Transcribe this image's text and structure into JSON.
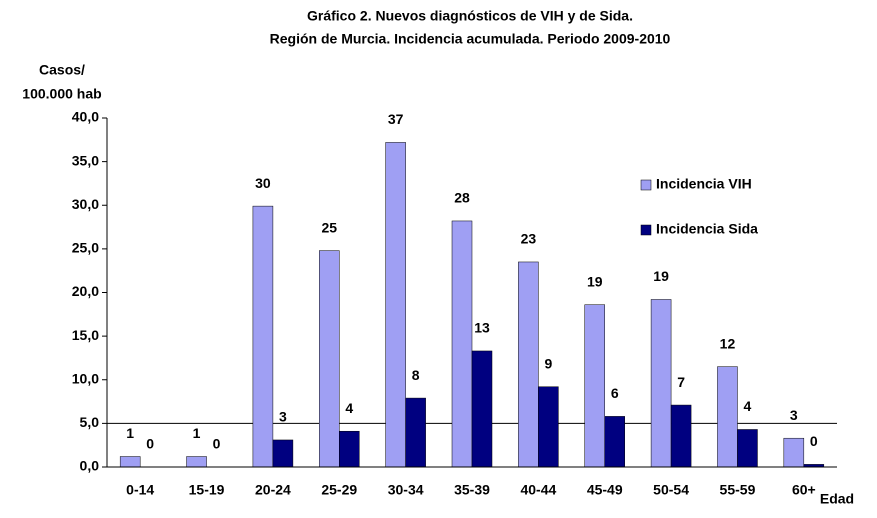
{
  "chart_data": {
    "type": "bar",
    "title": [
      "Gráfico 2. Nuevos diagnósticos de VIH y de Sida.",
      "Región de Murcia. Incidencia acumulada. Periodo 2009-2010"
    ],
    "y_label": [
      "Casos/",
      "100.000 hab"
    ],
    "x_label": "Edad",
    "categories": [
      "0-14",
      "15-19",
      "20-24",
      "25-29",
      "30-34",
      "35-39",
      "40-44",
      "45-49",
      "50-54",
      "55-59",
      "60+"
    ],
    "series": [
      {
        "name": "Incidencia VIH",
        "color": "#9f9ff3",
        "values": [
          1.2,
          1.2,
          29.9,
          24.8,
          37.2,
          28.2,
          23.5,
          18.6,
          19.2,
          11.5,
          3.3
        ],
        "value_labels": [
          "1",
          "1",
          "30",
          "25",
          "37",
          "28",
          "23",
          "19",
          "19",
          "12",
          "3"
        ]
      },
      {
        "name": "Incidencia Sida",
        "color": "#000080",
        "values": [
          0,
          0,
          3.1,
          4.1,
          7.9,
          13.3,
          9.2,
          5.8,
          7.1,
          4.3,
          0.3
        ],
        "value_labels": [
          "0",
          "0",
          "3",
          "4",
          "8",
          "13",
          "9",
          "6",
          "7",
          "4",
          "0"
        ]
      }
    ],
    "ylim": [
      0,
      40
    ],
    "yticks": [
      {
        "value": 0,
        "label": "0,0"
      },
      {
        "value": 5,
        "label": "5,0"
      },
      {
        "value": 10,
        "label": "10,0"
      },
      {
        "value": 15,
        "label": "15,0"
      },
      {
        "value": 20,
        "label": "20,0"
      },
      {
        "value": 25,
        "label": "25,0"
      },
      {
        "value": 30,
        "label": "30,0"
      },
      {
        "value": 35,
        "label": "35,0"
      },
      {
        "value": 40,
        "label": "40,0"
      }
    ],
    "reference_line": 5,
    "legend": "right"
  }
}
